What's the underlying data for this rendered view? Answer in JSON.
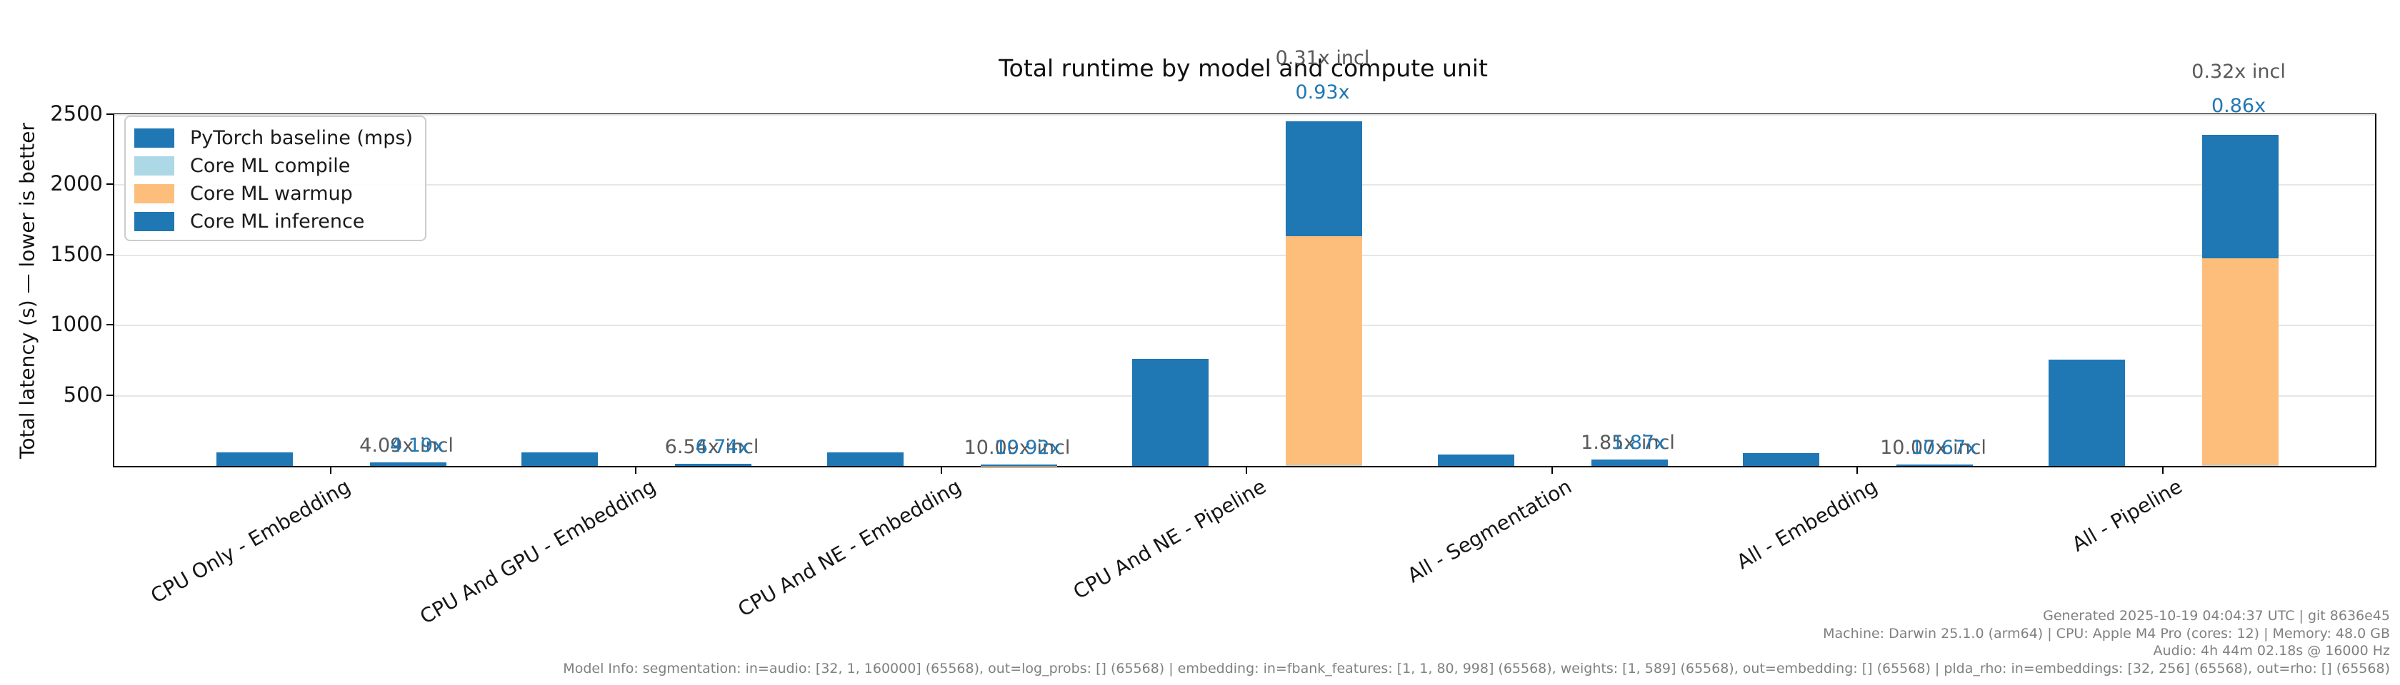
{
  "title": "Total runtime by model and compute unit",
  "ylabel": "Total latency (s) — lower is better",
  "colors": {
    "pytorch": "#1f77b4",
    "compile": "#add8e6",
    "warmup": "#fdbe7b",
    "inference": "#1f77b4",
    "grid": "#e6e6e6",
    "annotation_incl": "#595959",
    "annotation_excl": "#2077b4",
    "footer_text": "#808080"
  },
  "legend": {
    "items": [
      {
        "label": "PyTorch baseline (mps)",
        "colorKey": "pytorch"
      },
      {
        "label": "Core ML compile",
        "colorKey": "compile"
      },
      {
        "label": "Core ML warmup",
        "colorKey": "warmup"
      },
      {
        "label": "Core ML inference",
        "colorKey": "inference"
      }
    ]
  },
  "chart_data": {
    "type": "bar",
    "title": "Total runtime by model and compute unit",
    "ylabel": "Total latency (s) — lower is better",
    "ylim": [
      0,
      2500
    ],
    "yticks": [
      500,
      1000,
      1500,
      2000,
      2500
    ],
    "grid": true,
    "legend_position": "upper left",
    "categories": [
      "CPU Only - Embedding",
      "CPU And GPU - Embedding",
      "CPU And NE - Embedding",
      "CPU And NE - Pipeline",
      "All - Segmentation",
      "All - Embedding",
      "All - Pipeline"
    ],
    "series": [
      {
        "name": "PyTorch baseline (mps)",
        "stack": "baseline",
        "values": [
          97,
          95,
          95,
          760,
          82,
          94,
          755
        ]
      },
      {
        "name": "Core ML compile",
        "stack": "coreml",
        "values": [
          0.2,
          0.2,
          0.2,
          5,
          0.1,
          0.2,
          5
        ]
      },
      {
        "name": "Core ML warmup",
        "stack": "coreml",
        "values": [
          0.3,
          0.2,
          0.5,
          1630,
          0.3,
          0.3,
          1476
        ]
      },
      {
        "name": "Core ML inference",
        "stack": "coreml",
        "values": [
          23.2,
          14.1,
          8.7,
          817,
          43.9,
          8.8,
          878
        ]
      }
    ],
    "annotations": [
      {
        "speedup_excl": "4.19x",
        "speedup_incl": "4.09x incl"
      },
      {
        "speedup_excl": "6.74x",
        "speedup_incl": "6.54x incl"
      },
      {
        "speedup_excl": "10.92x",
        "speedup_incl": "10.09x incl"
      },
      {
        "speedup_excl": "0.93x",
        "speedup_incl": "0.31x incl"
      },
      {
        "speedup_excl": "1.87x",
        "speedup_incl": "1.85x incl"
      },
      {
        "speedup_excl": "10.67x",
        "speedup_incl": "10.07x incl"
      },
      {
        "speedup_excl": "0.86x",
        "speedup_incl": "0.32x incl"
      }
    ]
  },
  "footer": {
    "lines": [
      "Generated 2025-10-19 04:04:37 UTC | git 8636e45",
      "Machine: Darwin 25.1.0 (arm64) | CPU: Apple M4 Pro (cores: 12) | Memory: 48.0 GB",
      "Audio: 4h 44m 02.18s @ 16000 Hz",
      "Model Info: segmentation: in=audio: [32, 1, 160000] (65568), out=log_probs: [] (65568) | embedding: in=fbank_features: [1, 1, 80, 998] (65568), weights: [1, 589] (65568), out=embedding: [] (65568) | plda_rho: in=embeddings: [32, 256] (65568), out=rho: [] (65568)"
    ]
  }
}
